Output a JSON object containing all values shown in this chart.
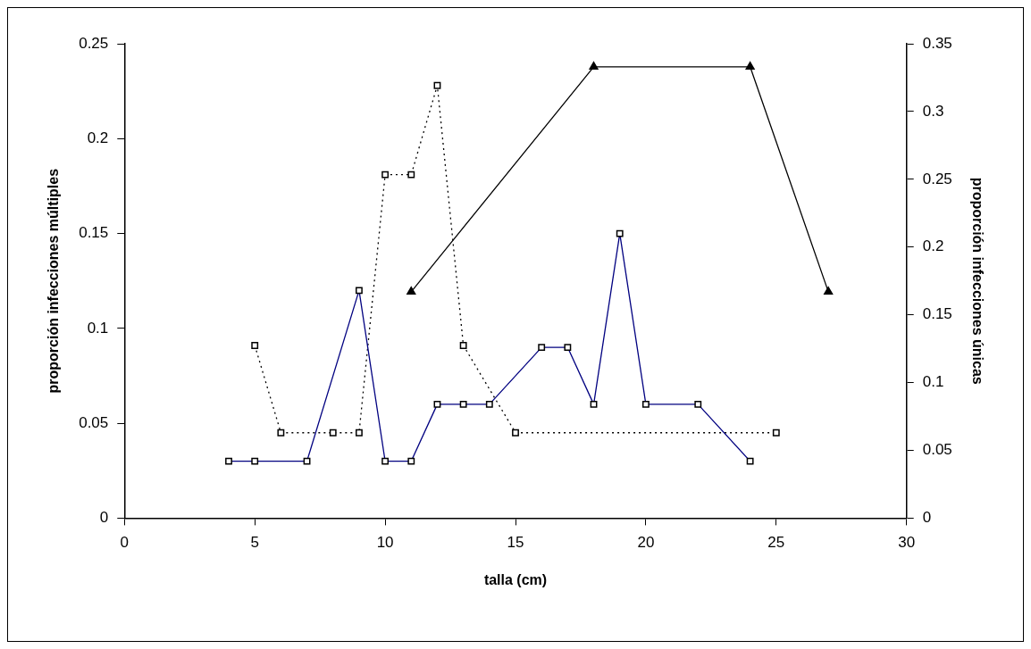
{
  "chart_data": {
    "type": "line",
    "xlabel": "talla (cm)",
    "ylabel": "proporción infecciones múltiples",
    "y2label": "proporción infecciones únicas",
    "xlim": [
      0,
      30
    ],
    "xticks": [
      0,
      5,
      10,
      15,
      20,
      25,
      30
    ],
    "ylim": [
      0,
      0.25
    ],
    "yticks": [
      0,
      0.05,
      0.1,
      0.15,
      0.2,
      0.25
    ],
    "y2lim": [
      0,
      0.35
    ],
    "y2ticks": [
      0,
      0.05,
      0.1,
      0.15,
      0.2,
      0.25,
      0.3,
      0.35
    ],
    "grid": false,
    "legend": false,
    "series": [
      {
        "color": "#000080",
        "marker": "square",
        "line_style": "solid",
        "x": [
          4,
          5,
          7,
          9,
          10,
          11,
          12,
          13,
          14,
          16,
          17,
          18,
          19,
          20,
          22,
          24
        ],
        "values": [
          0.03,
          0.03,
          0.03,
          0.12,
          0.03,
          0.03,
          0.06,
          0.06,
          0.06,
          0.09,
          0.09,
          0.06,
          0.15,
          0.06,
          0.06,
          0.03
        ]
      },
      {
        "color": "#000000",
        "marker": "square",
        "line_style": "dotted",
        "x": [
          5,
          6,
          8,
          9,
          10,
          11,
          12,
          13,
          15,
          25
        ],
        "values": [
          0.091,
          0.045,
          0.045,
          0.045,
          0.181,
          0.181,
          0.228,
          0.091,
          0.045,
          0.045
        ]
      },
      {
        "color": "#000000",
        "marker": "triangle",
        "line_style": "solid",
        "axis": "y2",
        "x": [
          11,
          18,
          24,
          27
        ],
        "values": [
          0.167,
          0.333,
          0.333,
          0.167
        ]
      }
    ]
  }
}
